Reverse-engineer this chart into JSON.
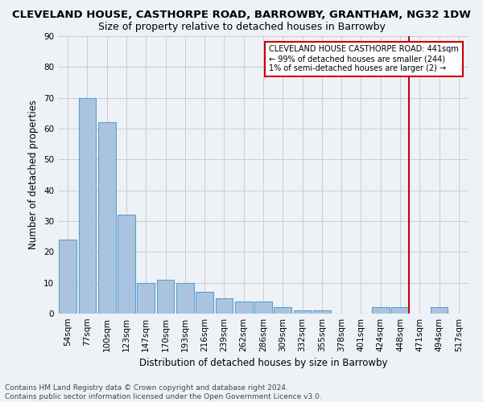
{
  "title": "CLEVELAND HOUSE, CASTHORPE ROAD, BARROWBY, GRANTHAM, NG32 1DW",
  "subtitle": "Size of property relative to detached houses in Barrowby",
  "xlabel": "Distribution of detached houses by size in Barrowby",
  "ylabel": "Number of detached properties",
  "footer_line1": "Contains HM Land Registry data © Crown copyright and database right 2024.",
  "footer_line2": "Contains public sector information licensed under the Open Government Licence v3.0.",
  "categories": [
    "54sqm",
    "77sqm",
    "100sqm",
    "123sqm",
    "147sqm",
    "170sqm",
    "193sqm",
    "216sqm",
    "239sqm",
    "262sqm",
    "286sqm",
    "309sqm",
    "332sqm",
    "355sqm",
    "378sqm",
    "401sqm",
    "424sqm",
    "448sqm",
    "471sqm",
    "494sqm",
    "517sqm"
  ],
  "values": [
    24,
    70,
    62,
    32,
    10,
    11,
    10,
    7,
    5,
    4,
    4,
    2,
    1,
    1,
    0,
    0,
    2,
    2,
    0,
    2,
    0
  ],
  "bar_color": "#aac4e0",
  "bar_edge_color": "#5a9fd4",
  "marker_label": "CLEVELAND HOUSE CASTHORPE ROAD: 441sqm\n← 99% of detached houses are smaller (244)\n1% of semi-detached houses are larger (2) →",
  "marker_line_color": "#cc0000",
  "marker_box_edge_color": "#cc0000",
  "ylim": [
    0,
    90
  ],
  "yticks": [
    0,
    10,
    20,
    30,
    40,
    50,
    60,
    70,
    80,
    90
  ],
  "grid_color": "#cccccc",
  "bg_color": "#eef2f7",
  "title_fontsize": 9.5,
  "subtitle_fontsize": 9,
  "axis_fontsize": 8.5,
  "tick_fontsize": 7.5,
  "footer_fontsize": 6.5,
  "marker_bar_index": 17
}
